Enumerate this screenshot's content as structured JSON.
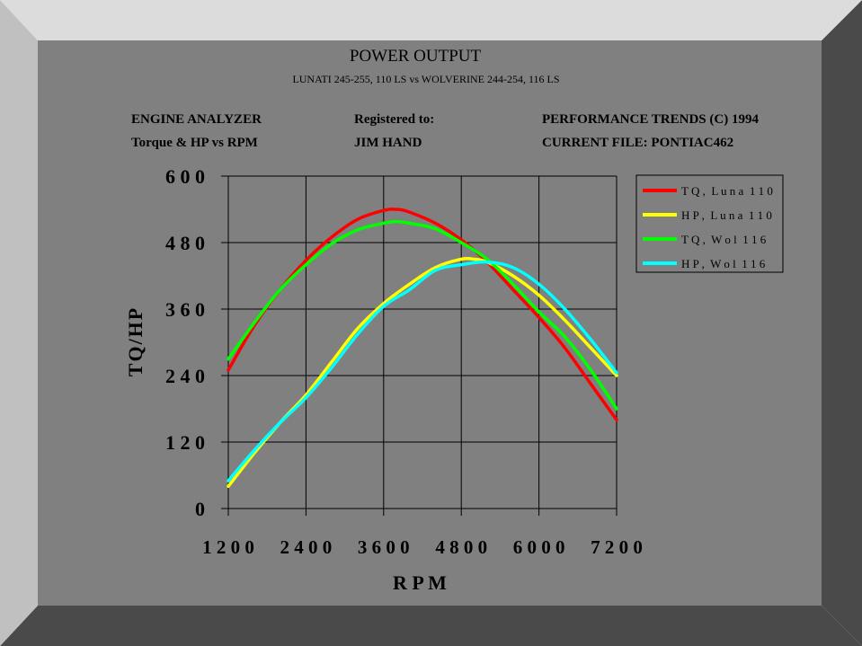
{
  "header": {
    "title": "POWER OUTPUT",
    "subtitle": "LUNATI 245-255, 110 LS vs WOLVERINE 244-254, 116 LS",
    "info": {
      "left_line1": "ENGINE ANALYZER",
      "left_line2": "Torque & HP vs RPM",
      "mid_line1": "Registered to:",
      "mid_line2": "JIM HAND",
      "right_line1": "PERFORMANCE TRENDS (C) 1994",
      "right_line2": "CURRENT FILE: PONTIAC462"
    }
  },
  "colors": {
    "background": "#ffffff",
    "panel": "#808080",
    "shadow": "#4a4a4a",
    "bevel_light": "#dcdcdc",
    "bevel_mid": "#c0c0c0",
    "grid": "#000000",
    "legend_bg": "#808080"
  },
  "chart_data": {
    "type": "line",
    "xlabel": "R P M",
    "ylabel": "TQ/HP",
    "xlim": [
      1200,
      7200
    ],
    "ylim": [
      0,
      600
    ],
    "xticks": [
      1200,
      2400,
      3600,
      4800,
      6000,
      7200
    ],
    "xtick_labels": [
      "1 2 0 0",
      "2 4 0 0",
      "3 6 0 0",
      "4 8 0 0",
      "6 0 0 0",
      "7 2 0 0"
    ],
    "yticks": [
      0,
      120,
      240,
      360,
      480,
      600
    ],
    "ytick_labels": [
      "0",
      "1 2 0",
      "2 4 0",
      "3 6 0",
      "4 8 0",
      "6 0 0"
    ],
    "grid": true,
    "legend_position": "top-right",
    "series": [
      {
        "name": "T Q ,  L u n a  1 1 0",
        "color": "#ff0000",
        "x": [
          1200,
          1600,
          2000,
          2400,
          2800,
          3200,
          3600,
          3800,
          4000,
          4400,
          4800,
          5200,
          5600,
          6000,
          6400,
          6800,
          7200
        ],
        "y": [
          250,
          330,
          395,
          448,
          490,
          522,
          538,
          540,
          535,
          515,
          485,
          445,
          395,
          345,
          290,
          225,
          160
        ]
      },
      {
        "name": "H P ,  L u n a  1 1 0",
        "color": "#ffff00",
        "x": [
          1200,
          1600,
          2000,
          2400,
          2800,
          3200,
          3600,
          4000,
          4400,
          4800,
          5000,
          5200,
          5600,
          6000,
          6400,
          6800,
          7200
        ],
        "y": [
          40,
          100,
          155,
          205,
          265,
          325,
          370,
          405,
          435,
          450,
          450,
          445,
          420,
          385,
          340,
          290,
          240
        ]
      },
      {
        "name": "T Q ,  W o l  1 1 6",
        "color": "#00ff00",
        "x": [
          1200,
          1600,
          2000,
          2400,
          2800,
          3200,
          3600,
          3800,
          4000,
          4400,
          4800,
          5200,
          5600,
          6000,
          6400,
          6800,
          7200
        ],
        "y": [
          270,
          335,
          395,
          440,
          478,
          503,
          515,
          518,
          515,
          505,
          480,
          450,
          405,
          355,
          310,
          250,
          180
        ]
      },
      {
        "name": "H P ,  W o l  1 1 6",
        "color": "#00ffff",
        "x": [
          1200,
          1600,
          2000,
          2400,
          2800,
          3200,
          3600,
          4000,
          4400,
          4800,
          5200,
          5600,
          6000,
          6400,
          6800,
          7200
        ],
        "y": [
          50,
          105,
          155,
          200,
          255,
          315,
          365,
          395,
          430,
          440,
          445,
          435,
          405,
          360,
          305,
          245
        ]
      }
    ]
  }
}
